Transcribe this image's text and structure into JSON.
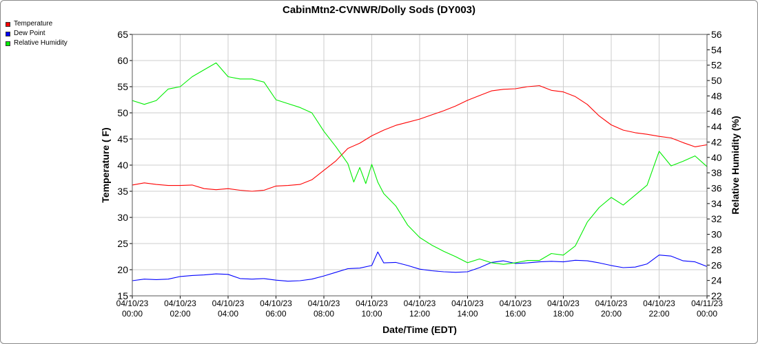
{
  "chart_data": {
    "type": "line",
    "title": "CabinMtn2-CVNWR/Dolly Sods (DY003)",
    "xlabel": "Date/Time (EDT)",
    "ylabel": "Temperature ( F)",
    "y2label": "Relative Humidity (%)",
    "ylim": [
      15,
      65
    ],
    "y2lim": [
      22,
      56
    ],
    "xlim": [
      "04/10/23 00:00",
      "04/11/23 00:00"
    ],
    "x_ticks": [
      {
        "date": "04/10/23",
        "time": "00:00"
      },
      {
        "date": "04/10/23",
        "time": "02:00"
      },
      {
        "date": "04/10/23",
        "time": "04:00"
      },
      {
        "date": "04/10/23",
        "time": "06:00"
      },
      {
        "date": "04/10/23",
        "time": "08:00"
      },
      {
        "date": "04/10/23",
        "time": "10:00"
      },
      {
        "date": "04/10/23",
        "time": "12:00"
      },
      {
        "date": "04/10/23",
        "time": "14:00"
      },
      {
        "date": "04/10/23",
        "time": "16:00"
      },
      {
        "date": "04/10/23",
        "time": "18:00"
      },
      {
        "date": "04/10/23",
        "time": "20:00"
      },
      {
        "date": "04/10/23",
        "time": "22:00"
      },
      {
        "date": "04/11/23",
        "time": "00:00"
      }
    ],
    "y_ticks": [
      15,
      20,
      25,
      30,
      35,
      40,
      45,
      50,
      55,
      60,
      65
    ],
    "y2_ticks": [
      22,
      24,
      26,
      28,
      30,
      32,
      34,
      36,
      38,
      40,
      42,
      44,
      46,
      48,
      50,
      52,
      54,
      56
    ],
    "grid": true,
    "legend_position": "top-left",
    "series": [
      {
        "name": "Temperature",
        "color": "#ff0000",
        "axis": "left",
        "x": [
          "04/10/23 00:00",
          "04/10/23 00:30",
          "04/10/23 01:00",
          "04/10/23 01:30",
          "04/10/23 02:00",
          "04/10/23 02:30",
          "04/10/23 03:00",
          "04/10/23 03:30",
          "04/10/23 04:00",
          "04/10/23 04:30",
          "04/10/23 05:00",
          "04/10/23 05:30",
          "04/10/23 06:00",
          "04/10/23 06:30",
          "04/10/23 07:00",
          "04/10/23 07:30",
          "04/10/23 08:00",
          "04/10/23 08:30",
          "04/10/23 09:00",
          "04/10/23 09:30",
          "04/10/23 10:00",
          "04/10/23 10:30",
          "04/10/23 11:00",
          "04/10/23 11:30",
          "04/10/23 12:00",
          "04/10/23 12:30",
          "04/10/23 13:00",
          "04/10/23 13:30",
          "04/10/23 14:00",
          "04/10/23 14:30",
          "04/10/23 15:00",
          "04/10/23 15:30",
          "04/10/23 16:00",
          "04/10/23 16:30",
          "04/10/23 17:00",
          "04/10/23 17:30",
          "04/10/23 18:00",
          "04/10/23 18:30",
          "04/10/23 19:00",
          "04/10/23 19:30",
          "04/10/23 20:00",
          "04/10/23 20:30",
          "04/10/23 21:00",
          "04/10/23 21:30",
          "04/10/23 22:00",
          "04/10/23 22:30",
          "04/10/23 23:00",
          "04/10/23 23:30",
          "04/11/23 00:00"
        ],
        "values": [
          36.2,
          36.6,
          36.3,
          36.1,
          36.1,
          36.2,
          35.5,
          35.3,
          35.5,
          35.2,
          35.0,
          35.2,
          36.0,
          36.1,
          36.3,
          37.2,
          39.0,
          40.8,
          43.2,
          44.2,
          45.6,
          46.7,
          47.6,
          48.2,
          48.8,
          49.6,
          50.4,
          51.3,
          52.4,
          53.3,
          54.2,
          54.5,
          54.6,
          55.0,
          55.2,
          54.3,
          54.0,
          53.1,
          51.6,
          49.4,
          47.7,
          46.7,
          46.2,
          45.9,
          45.5,
          45.2,
          44.3,
          43.5,
          43.9
        ]
      },
      {
        "name": "Dew Point",
        "color": "#0000ff",
        "axis": "left",
        "x": [
          "04/10/23 00:00",
          "04/10/23 00:30",
          "04/10/23 01:00",
          "04/10/23 01:30",
          "04/10/23 02:00",
          "04/10/23 02:30",
          "04/10/23 03:00",
          "04/10/23 03:30",
          "04/10/23 04:00",
          "04/10/23 04:30",
          "04/10/23 05:00",
          "04/10/23 05:30",
          "04/10/23 06:00",
          "04/10/23 06:30",
          "04/10/23 07:00",
          "04/10/23 07:30",
          "04/10/23 08:00",
          "04/10/23 08:30",
          "04/10/23 09:00",
          "04/10/23 09:30",
          "04/10/23 10:00",
          "04/10/23 10:15",
          "04/10/23 10:30",
          "04/10/23 11:00",
          "04/10/23 11:30",
          "04/10/23 12:00",
          "04/10/23 12:30",
          "04/10/23 13:00",
          "04/10/23 13:30",
          "04/10/23 14:00",
          "04/10/23 14:30",
          "04/10/23 15:00",
          "04/10/23 15:30",
          "04/10/23 16:00",
          "04/10/23 16:30",
          "04/10/23 17:00",
          "04/10/23 17:30",
          "04/10/23 18:00",
          "04/10/23 18:30",
          "04/10/23 19:00",
          "04/10/23 19:30",
          "04/10/23 20:00",
          "04/10/23 20:30",
          "04/10/23 21:00",
          "04/10/23 21:30",
          "04/10/23 22:00",
          "04/10/23 22:30",
          "04/10/23 23:00",
          "04/10/23 23:30",
          "04/11/23 00:00"
        ],
        "values": [
          17.9,
          18.2,
          18.1,
          18.2,
          18.7,
          18.9,
          19.0,
          19.2,
          19.1,
          18.3,
          18.2,
          18.3,
          18.0,
          17.8,
          17.9,
          18.2,
          18.8,
          19.5,
          20.2,
          20.3,
          20.8,
          23.4,
          21.3,
          21.4,
          20.8,
          20.1,
          19.8,
          19.6,
          19.5,
          19.6,
          20.4,
          21.4,
          21.7,
          21.2,
          21.3,
          21.5,
          21.6,
          21.5,
          21.8,
          21.7,
          21.3,
          20.8,
          20.4,
          20.5,
          21.1,
          22.8,
          22.6,
          21.7,
          21.5,
          20.6
        ]
      },
      {
        "name": "Relative Humidity",
        "color": "#00ee00",
        "axis": "right",
        "x": [
          "04/10/23 00:00",
          "04/10/23 00:30",
          "04/10/23 01:00",
          "04/10/23 01:30",
          "04/10/23 02:00",
          "04/10/23 02:30",
          "04/10/23 03:00",
          "04/10/23 03:30",
          "04/10/23 04:00",
          "04/10/23 04:30",
          "04/10/23 05:00",
          "04/10/23 05:30",
          "04/10/23 06:00",
          "04/10/23 06:30",
          "04/10/23 07:00",
          "04/10/23 07:30",
          "04/10/23 08:00",
          "04/10/23 08:30",
          "04/10/23 09:00",
          "04/10/23 09:15",
          "04/10/23 09:30",
          "04/10/23 09:45",
          "04/10/23 10:00",
          "04/10/23 10:15",
          "04/10/23 10:30",
          "04/10/23 11:00",
          "04/10/23 11:30",
          "04/10/23 12:00",
          "04/10/23 12:30",
          "04/10/23 13:00",
          "04/10/23 13:30",
          "04/10/23 14:00",
          "04/10/23 14:30",
          "04/10/23 15:00",
          "04/10/23 15:30",
          "04/10/23 16:00",
          "04/10/23 16:30",
          "04/10/23 17:00",
          "04/10/23 17:30",
          "04/10/23 18:00",
          "04/10/23 18:30",
          "04/10/23 19:00",
          "04/10/23 19:30",
          "04/10/23 20:00",
          "04/10/23 20:30",
          "04/10/23 21:00",
          "04/10/23 21:30",
          "04/10/23 22:00",
          "04/10/23 22:30",
          "04/10/23 23:00",
          "04/10/23 23:30",
          "04/11/23 00:00"
        ],
        "values": [
          47.4,
          46.9,
          47.4,
          48.9,
          49.2,
          50.5,
          51.4,
          52.3,
          50.5,
          50.2,
          50.2,
          49.8,
          47.5,
          47.0,
          46.5,
          45.8,
          43.4,
          41.4,
          39.2,
          36.8,
          38.7,
          36.6,
          39.1,
          36.8,
          35.3,
          33.7,
          31.2,
          29.6,
          28.6,
          27.8,
          27.1,
          26.3,
          26.8,
          26.3,
          26.1,
          26.3,
          26.6,
          26.6,
          27.5,
          27.3,
          28.5,
          31.6,
          33.5,
          34.8,
          33.8,
          35.1,
          36.4,
          40.8,
          38.9,
          39.5,
          40.2,
          38.8
        ]
      }
    ]
  }
}
